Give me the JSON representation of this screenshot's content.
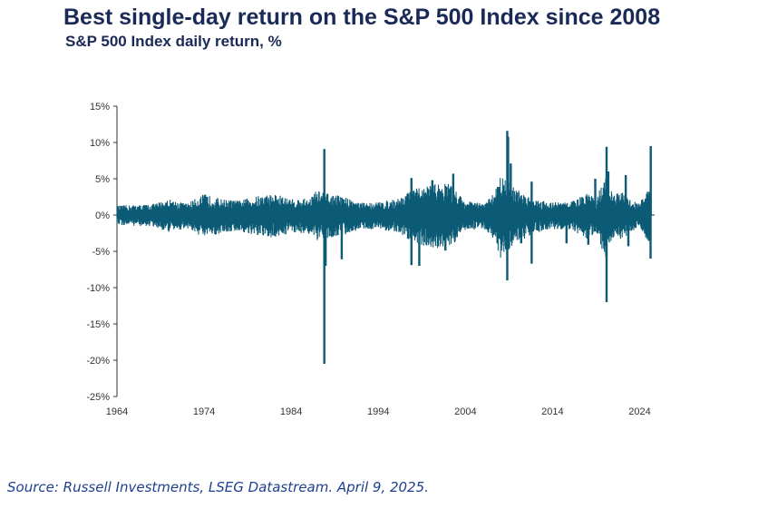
{
  "title": "Best single-day return on the S&P 500 Index since 2008",
  "subtitle": "S&P 500 Index daily return, %",
  "source": "Source: Russell Investments, LSEG Datastream. April 9, 2025.",
  "colors": {
    "series": "#0b5a76",
    "title": "#1a2a57",
    "source": "#1f3f8f"
  },
  "chart_data": {
    "type": "line",
    "title": "Best single-day return on the S&P 500 Index since 2008",
    "subtitle": "S&P 500 Index daily return, %",
    "xlabel": "",
    "ylabel": "",
    "xlim": [
      1964,
      2025.3
    ],
    "ylim": [
      -25,
      15
    ],
    "x_ticks": [
      1964,
      1974,
      1984,
      1994,
      2004,
      2014,
      2024
    ],
    "y_ticks": [
      15,
      10,
      5,
      0,
      -5,
      -10,
      -15,
      -20,
      -25
    ],
    "y_tick_labels": [
      "15%",
      "10%",
      "5%",
      "0%",
      "-5%",
      "-10%",
      "-15%",
      "-20%",
      "-25%"
    ],
    "grid": false,
    "legend": "none",
    "volatility_envelope": {
      "x": [
        1964,
        1966,
        1968,
        1970,
        1972,
        1974,
        1976,
        1978,
        1980,
        1982,
        1984,
        1986,
        1987,
        1988,
        1990,
        1992,
        1994,
        1996,
        1998,
        2000,
        2002,
        2004,
        2006,
        2007,
        2008,
        2009,
        2010,
        2012,
        2014,
        2016,
        2018,
        2019,
        2020,
        2021,
        2022,
        2023,
        2024,
        2025
      ],
      "upper": [
        1.3,
        1.4,
        1.5,
        2.2,
        1.6,
        2.9,
        2.2,
        2.0,
        2.6,
        3.0,
        2.2,
        2.3,
        3.5,
        3.0,
        2.6,
        1.7,
        1.8,
        2.2,
        3.5,
        4.2,
        4.5,
        2.0,
        1.6,
        2.5,
        5.5,
        4.5,
        3.5,
        2.2,
        1.8,
        1.8,
        3.0,
        2.2,
        5.5,
        2.8,
        3.2,
        2.0,
        1.8,
        3.5
      ],
      "lower": [
        -1.4,
        -1.5,
        -1.6,
        -2.4,
        -1.8,
        -3.2,
        -2.5,
        -2.2,
        -3.0,
        -3.2,
        -2.4,
        -2.6,
        -3.8,
        -3.2,
        -2.8,
        -1.9,
        -2.0,
        -2.4,
        -3.8,
        -4.5,
        -4.8,
        -2.2,
        -1.8,
        -2.8,
        -6.0,
        -4.8,
        -3.8,
        -2.4,
        -2.0,
        -2.0,
        -3.4,
        -2.4,
        -6.0,
        -3.0,
        -3.5,
        -2.2,
        -2.0,
        -4.0
      ]
    },
    "spikes": [
      {
        "x": 1987.8,
        "y": 9.1
      },
      {
        "x": 1987.8,
        "y": -20.5
      },
      {
        "x": 1987.95,
        "y": -7.0
      },
      {
        "x": 1989.8,
        "y": -6.1
      },
      {
        "x": 1997.8,
        "y": 5.1
      },
      {
        "x": 1997.8,
        "y": -6.9
      },
      {
        "x": 1998.7,
        "y": -7.0
      },
      {
        "x": 2000.2,
        "y": 4.8
      },
      {
        "x": 2001.7,
        "y": -4.9
      },
      {
        "x": 2002.6,
        "y": 5.7
      },
      {
        "x": 2008.8,
        "y": 11.6
      },
      {
        "x": 2008.8,
        "y": -9.0
      },
      {
        "x": 2008.9,
        "y": 10.8
      },
      {
        "x": 2009.2,
        "y": 7.1
      },
      {
        "x": 2010.4,
        "y": -3.9
      },
      {
        "x": 2011.6,
        "y": 4.6
      },
      {
        "x": 2011.6,
        "y": -6.7
      },
      {
        "x": 2015.6,
        "y": -3.9
      },
      {
        "x": 2018.1,
        "y": -4.1
      },
      {
        "x": 2018.9,
        "y": 5.0
      },
      {
        "x": 2020.2,
        "y": 9.4
      },
      {
        "x": 2020.2,
        "y": -12.0
      },
      {
        "x": 2020.4,
        "y": 6.0
      },
      {
        "x": 2022.4,
        "y": 5.5
      },
      {
        "x": 2022.7,
        "y": -4.3
      },
      {
        "x": 2025.27,
        "y": 9.5
      },
      {
        "x": 2025.25,
        "y": -6.0
      }
    ]
  }
}
